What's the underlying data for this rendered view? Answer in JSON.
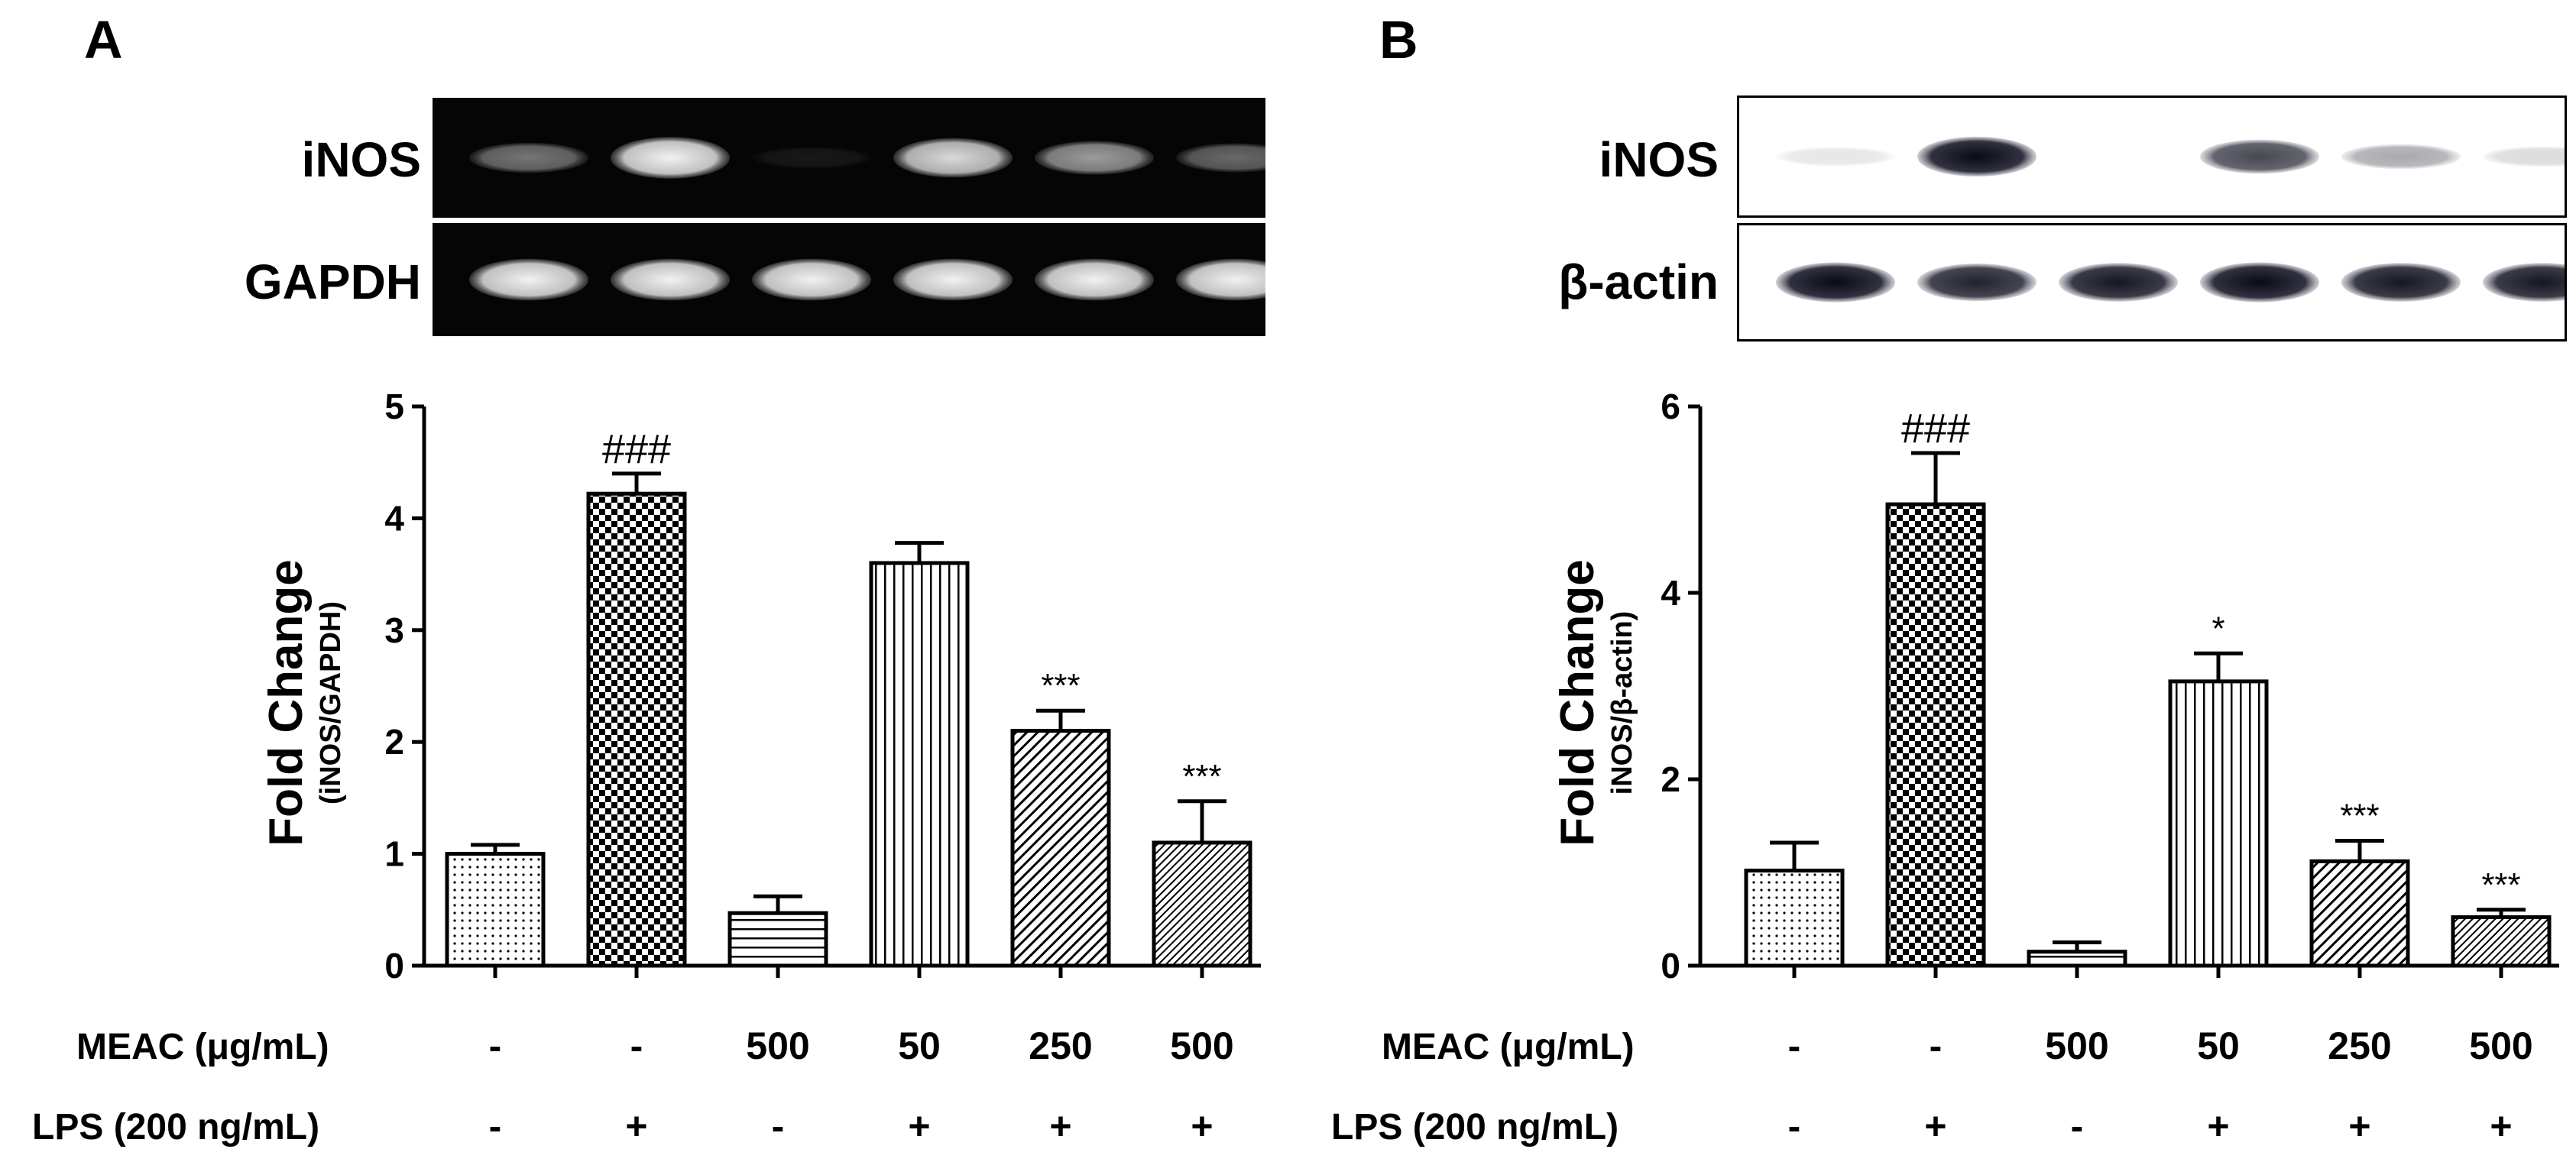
{
  "panels": [
    {
      "id": "A",
      "letter": "A",
      "blot": {
        "style": "gel",
        "rows": [
          {
            "label": "iNOS",
            "intensities": [
              0.45,
              0.95,
              0.08,
              0.85,
              0.6,
              0.4
            ]
          },
          {
            "label": "GAPDH",
            "intensities": [
              0.95,
              0.95,
              0.95,
              0.95,
              0.95,
              0.95
            ]
          }
        ]
      },
      "conditions": {
        "row1_label": "MEAC (μg/mL)",
        "row1_values": [
          "-",
          "-",
          "500",
          "50",
          "250",
          "500"
        ],
        "row2_label": "LPS (200 ng/mL)",
        "row2_values": [
          "-",
          "+",
          "-",
          "+",
          "+",
          "+"
        ]
      }
    },
    {
      "id": "B",
      "letter": "B",
      "blot": {
        "style": "western",
        "rows": [
          {
            "label": "iNOS",
            "intensities": [
              0.1,
              1.0,
              0.0,
              0.75,
              0.35,
              0.15
            ]
          },
          {
            "label": "β-actin",
            "intensities": [
              1.0,
              0.9,
              0.95,
              1.0,
              0.95,
              0.95
            ]
          }
        ]
      },
      "conditions": {
        "row1_label": "MEAC (μg/mL)",
        "row1_values": [
          "-",
          "-",
          "500",
          "50",
          "250",
          "500"
        ],
        "row2_label": "LPS (200 ng/mL)",
        "row2_values": [
          "-",
          "+",
          "-",
          "+",
          "+",
          "+"
        ]
      }
    }
  ],
  "chart_data": [
    {
      "type": "bar",
      "panel": "A",
      "ylabel": "Fold Change",
      "ylabel_sub": "(iNOS/GAPDH)",
      "ylim": [
        0,
        5
      ],
      "yticks": [
        "0",
        "1",
        "2",
        "3",
        "4",
        "5"
      ],
      "values": [
        1.0,
        4.22,
        0.47,
        3.6,
        2.1,
        1.1
      ],
      "errors": [
        0.08,
        0.18,
        0.15,
        0.18,
        0.18,
        0.37
      ],
      "annotations": [
        "",
        "###",
        "",
        "",
        "***",
        "***"
      ],
      "patterns": [
        "dotted",
        "checker",
        "hlines",
        "vlines",
        "diag",
        "diag-fine"
      ]
    },
    {
      "type": "bar",
      "panel": "B",
      "ylabel": "Fold Change",
      "ylabel_sub": "iNOS/β-actin)",
      "ylim": [
        0,
        6
      ],
      "yticks": [
        "0",
        "2",
        "4",
        "6"
      ],
      "values": [
        1.02,
        4.95,
        0.15,
        3.05,
        1.12,
        0.52
      ],
      "errors": [
        0.3,
        0.55,
        0.1,
        0.3,
        0.22,
        0.08
      ],
      "annotations": [
        "",
        "###",
        "",
        "*",
        "***",
        "***"
      ],
      "patterns": [
        "dotted",
        "checker",
        "hlines",
        "vlines",
        "diag",
        "diag-fine"
      ]
    }
  ]
}
